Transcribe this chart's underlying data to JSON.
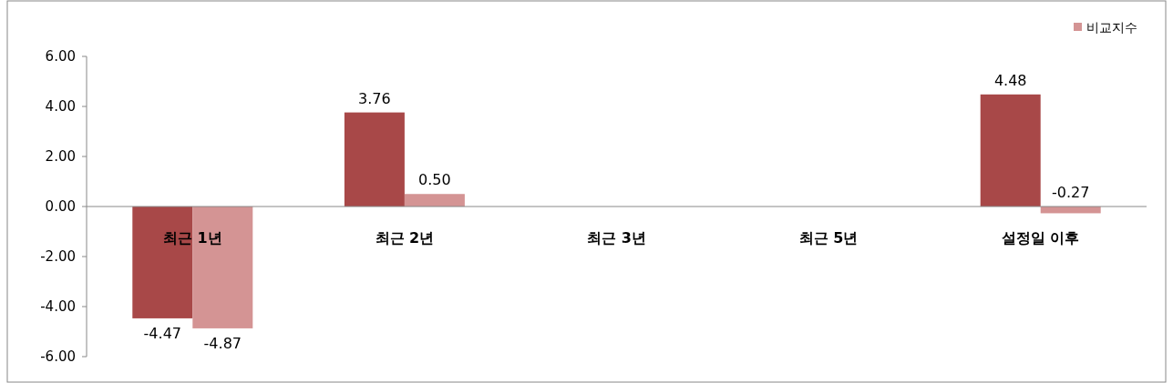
{
  "chart_data": {
    "type": "bar",
    "categories": [
      "최근 1년",
      "최근 2년",
      "최근 3년",
      "최근 5년",
      "설정일 이후"
    ],
    "series": [
      {
        "color": "#a84848",
        "values": [
          -4.47,
          3.76,
          null,
          null,
          4.48
        ],
        "value_labels": [
          "-4.47",
          "3.76",
          null,
          null,
          "4.48"
        ]
      },
      {
        "name": "비교지수",
        "color": "#d49494",
        "values": [
          -4.87,
          0.5,
          null,
          null,
          -0.27
        ],
        "value_labels": [
          "-4.87",
          "0.50",
          null,
          null,
          "-0.27"
        ]
      }
    ],
    "ylim": [
      -6,
      6
    ],
    "yticks": [
      {
        "value": 6,
        "label": "6.00"
      },
      {
        "value": 4,
        "label": "4.00"
      },
      {
        "value": 2,
        "label": "2.00"
      },
      {
        "value": 0,
        "label": "0.00"
      },
      {
        "value": -2,
        "label": "-2.00"
      },
      {
        "value": -4,
        "label": "-4.00"
      },
      {
        "value": -6,
        "label": "-6.00"
      }
    ],
    "grid": false,
    "legend": "top right"
  }
}
